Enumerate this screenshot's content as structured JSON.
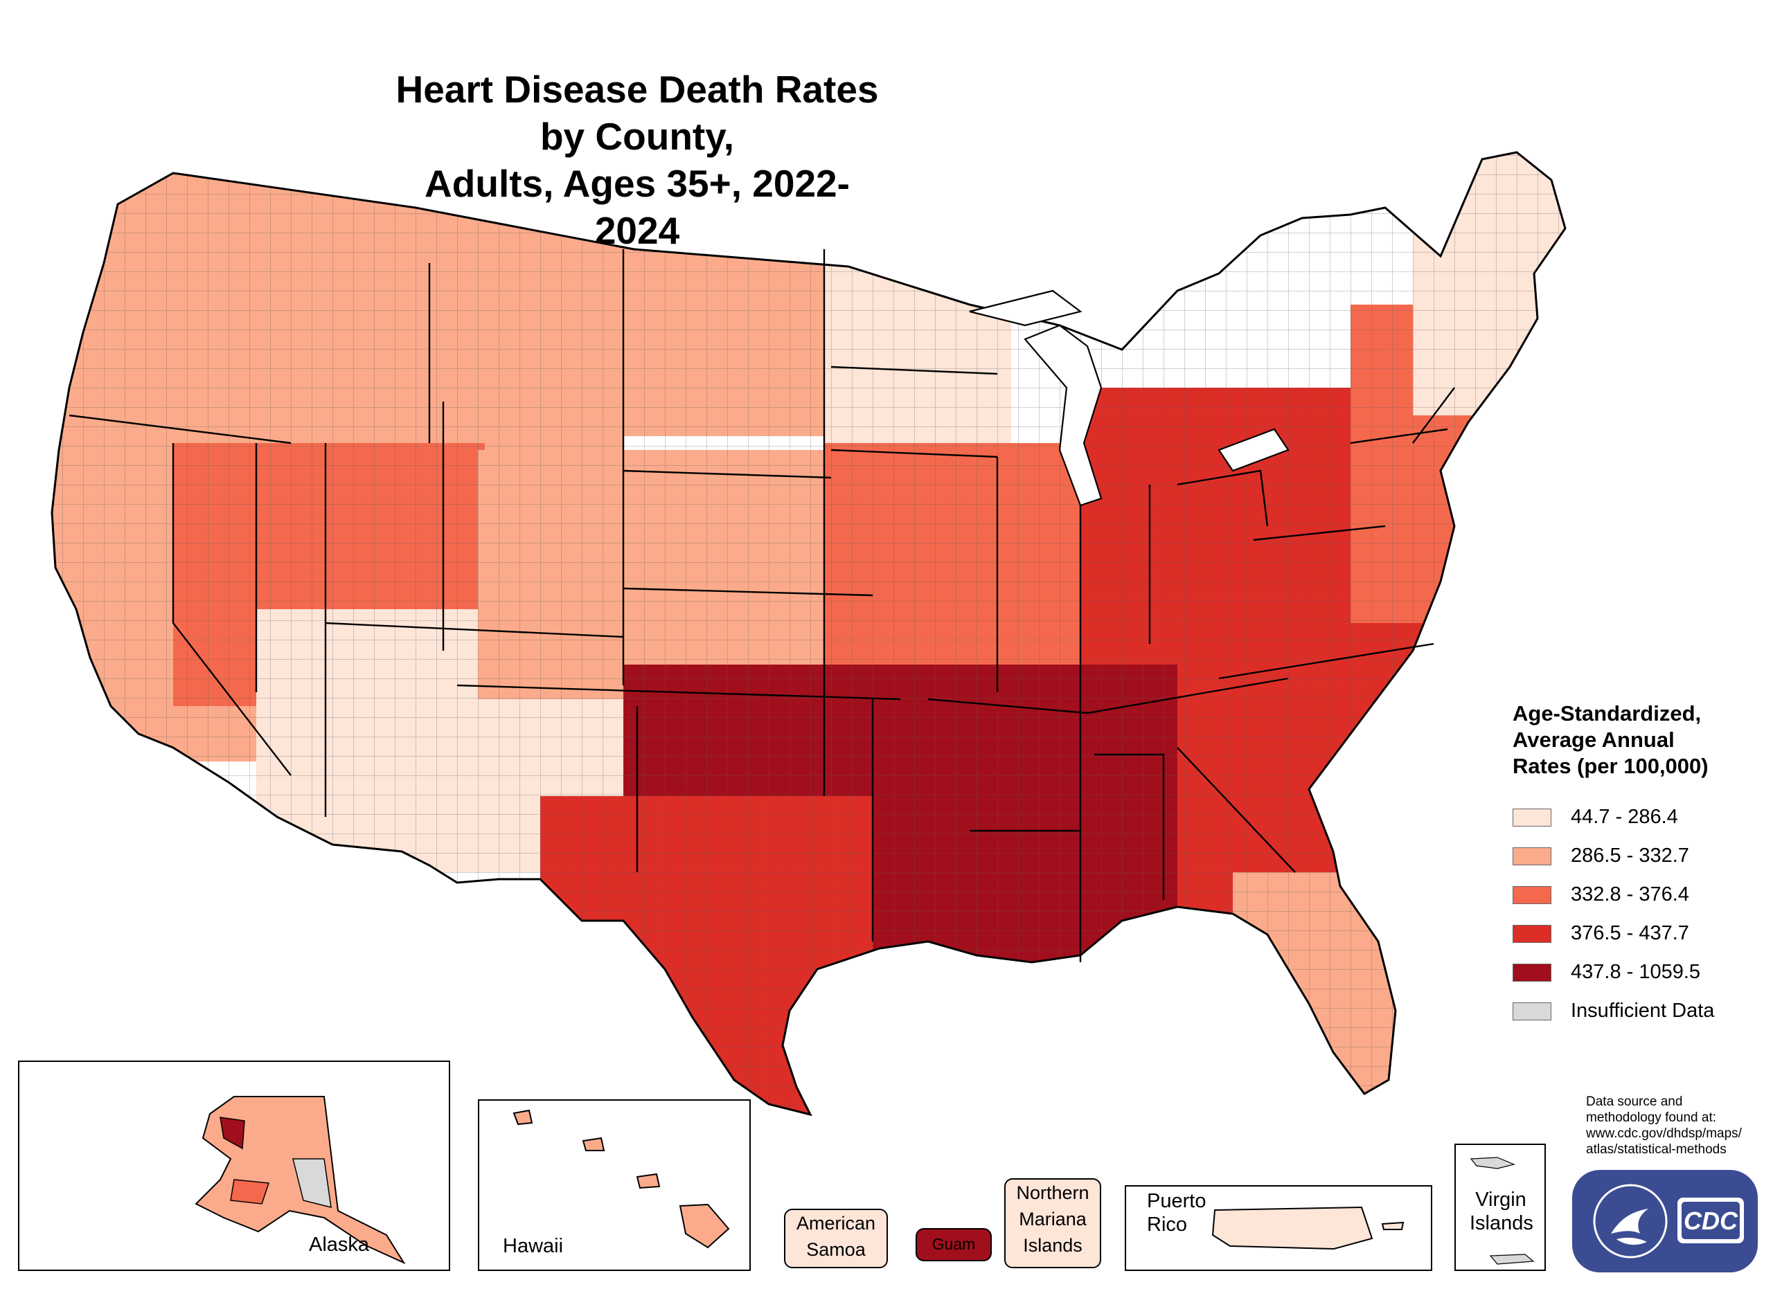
{
  "title": {
    "line1": "Heart Disease Death Rates by County,",
    "line2": "Adults, Ages 35+, 2022-2024"
  },
  "legend": {
    "title_lines": [
      "Age-Standardized,",
      "Average Annual",
      "Rates (per 100,000)"
    ],
    "items": [
      {
        "label": "44.7 - 286.4",
        "color": "#fde5d8"
      },
      {
        "label": "286.5 - 332.7",
        "color": "#fbab8b"
      },
      {
        "label": "332.8 - 376.4",
        "color": "#f4694d"
      },
      {
        "label": "376.5 - 437.7",
        "color": "#dc2e27"
      },
      {
        "label": "437.8 - 1059.5",
        "color": "#a10f1c"
      },
      {
        "label": "Insufficient Data",
        "color": "#d9d9d9"
      }
    ]
  },
  "insets": {
    "alaska": "Alaska",
    "hawaii": "Hawaii",
    "puerto_rico_line1": "Puerto",
    "puerto_rico_line2": "Rico",
    "virgin_islands_line1": "Virgin",
    "virgin_islands_line2": "Islands"
  },
  "territories": {
    "american_samoa": {
      "line1": "American",
      "line2": "Samoa",
      "color": "#fde5d8"
    },
    "guam": {
      "label": "Guam",
      "color": "#a10f1c"
    },
    "northern_mariana": {
      "line1": "Northern",
      "line2": "Mariana",
      "line3": "Islands",
      "color": "#fde5d8"
    }
  },
  "source_note": {
    "lines": [
      "Data source and",
      "methodology found at:",
      "www.cdc.gov/dhdsp/maps/",
      "atlas/statistical-methods"
    ]
  },
  "logo": {
    "text": "CDC",
    "color": "#3b4c93"
  },
  "regions": [
    {
      "name": "northwest",
      "color": "#fbab8b"
    },
    {
      "name": "rockies-north",
      "color": "#fbab8b"
    },
    {
      "name": "northern-plains",
      "color": "#fbab8b"
    },
    {
      "name": "upper-midwest",
      "color": "#fde5d8"
    },
    {
      "name": "california",
      "color": "#fbab8b"
    },
    {
      "name": "great-basin",
      "color": "#f4694d"
    },
    {
      "name": "southwest",
      "color": "#fde5d8"
    },
    {
      "name": "central-plains",
      "color": "#fbab8b"
    },
    {
      "name": "midwest",
      "color": "#f4694d"
    },
    {
      "name": "appalachia-ohio",
      "color": "#dc2e27"
    },
    {
      "name": "mid-south",
      "color": "#a10f1c"
    },
    {
      "name": "texas",
      "color": "#dc2e27"
    },
    {
      "name": "southeast",
      "color": "#dc2e27"
    },
    {
      "name": "florida",
      "color": "#fbab8b"
    },
    {
      "name": "northeast",
      "color": "#f4694d"
    },
    {
      "name": "new-england",
      "color": "#fde5d8"
    }
  ]
}
